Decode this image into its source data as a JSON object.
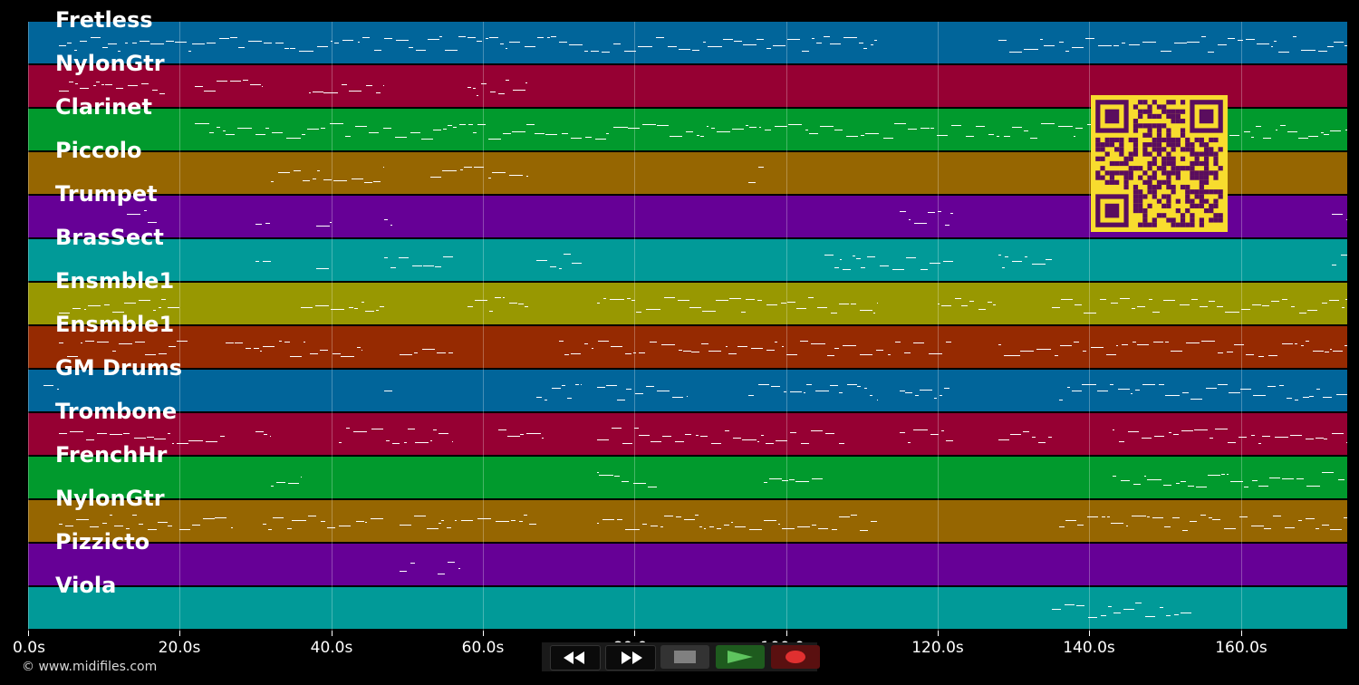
{
  "tracks": [
    {
      "name": "Fretless",
      "color": "#01659a"
    },
    {
      "name": "NylonGtr",
      "color": "#960033"
    },
    {
      "name": "Clarinet",
      "color": "#019a2d"
    },
    {
      "name": "Piccolo",
      "color": "#966601"
    },
    {
      "name": "Trumpet",
      "color": "#660096"
    },
    {
      "name": "BrasSect",
      "color": "#019a98"
    },
    {
      "name": "Ensmble1",
      "color": "#989801"
    },
    {
      "name": "Ensmble1",
      "color": "#962a01"
    },
    {
      "name": "GM Drums",
      "color": "#01659a"
    },
    {
      "name": "Trombone",
      "color": "#960033"
    },
    {
      "name": "FrenchHr",
      "color": "#019a2d"
    },
    {
      "name": "NylonGtr",
      "color": "#966601"
    },
    {
      "name": "Pizzicto",
      "color": "#660096"
    },
    {
      "name": "Viola",
      "color": "#019a98"
    }
  ],
  "timeline": {
    "unit": "s",
    "max_seconds": 174,
    "ticks": [
      "0.0s",
      "20.0s",
      "40.0s",
      "60.0s",
      "80.0s",
      "100.0s",
      "120.0s",
      "140.0s",
      "160.0s"
    ],
    "tick_values": [
      0,
      20,
      40,
      60,
      80,
      100,
      120,
      140,
      160
    ]
  },
  "qr_code": {
    "icon": "qr-code-icon",
    "color": "#f8dc2e",
    "dark": "#5a0d5e"
  },
  "copyright": "© www.midifiles.com",
  "transport": {
    "rewind": {
      "icon": "rewind-icon"
    },
    "fast_forward": {
      "icon": "fast-forward-icon"
    },
    "stop": {
      "icon": "stop-icon",
      "color": "#808080"
    },
    "play": {
      "icon": "play-icon",
      "color": "#5ec45e"
    },
    "record": {
      "icon": "record-icon",
      "color": "#e03030"
    }
  }
}
